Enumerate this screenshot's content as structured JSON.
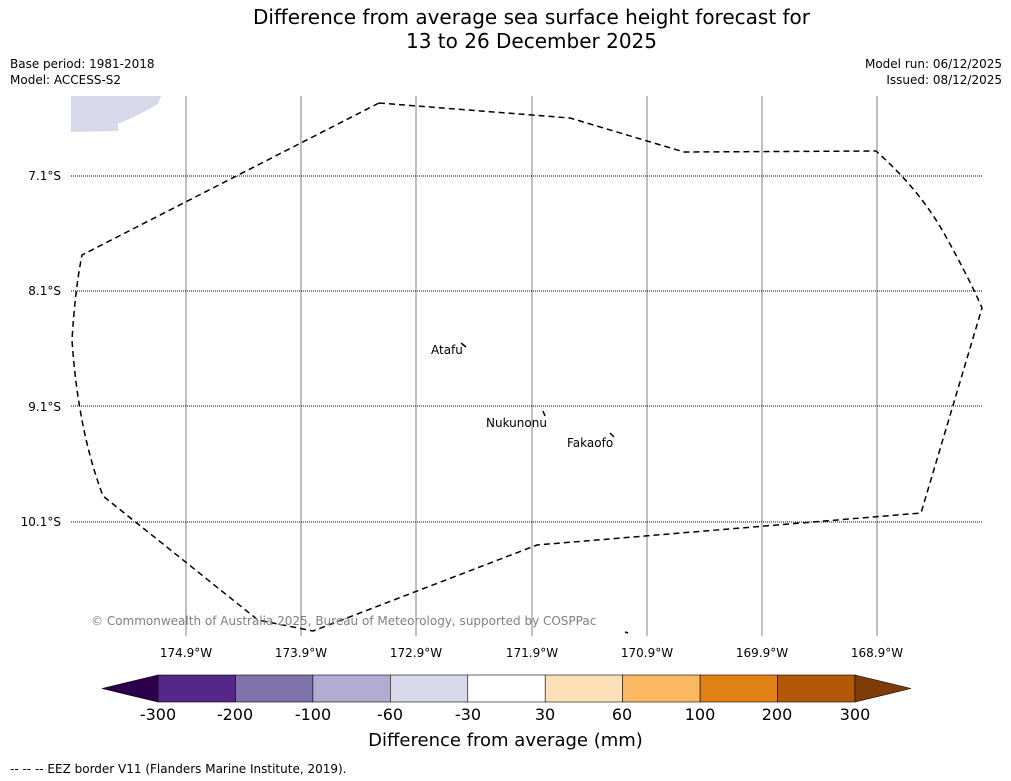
{
  "title": {
    "line1": "Difference from average sea surface height forecast for",
    "line2": "13 to 26 December 2025"
  },
  "meta_left": {
    "base_period": "Base period: 1981-2018",
    "model": "Model: ACCESS-S2"
  },
  "meta_right": {
    "model_run": "Model run: 06/12/2025",
    "issued": "Issued: 08/12/2025"
  },
  "map": {
    "latitude_labels": [
      "7.1°S",
      "8.1°S",
      "9.1°S",
      "10.1°S"
    ],
    "longitude_labels": [
      "174.9°W",
      "173.9°W",
      "172.9°W",
      "171.9°W",
      "170.9°W",
      "169.9°W",
      "168.9°W"
    ],
    "places": [
      "Atafu",
      "Nukunonu",
      "Fakaofo"
    ],
    "copyright": "© Commonwealth of Australia 2025, Bureau of Meteorology, supported by COSPPac",
    "anomaly_patch_color": "#d8d8eb",
    "eez_color": "#000000"
  },
  "colorbar": {
    "ticks": [
      "-300",
      "-200",
      "-100",
      "-60",
      "-30",
      "30",
      "60",
      "100",
      "200",
      "300"
    ],
    "colors": [
      "#2d004b",
      "#542788",
      "#8073ac",
      "#b2abd2",
      "#d8daeb",
      "#ffffff",
      "#fee0b6",
      "#fdb863",
      "#e08214",
      "#b35806",
      "#7f3b08"
    ],
    "label": "Difference from average (mm)"
  },
  "footer": "-- -- -- EEZ border V11 (Flanders Marine Institute, 2019)."
}
